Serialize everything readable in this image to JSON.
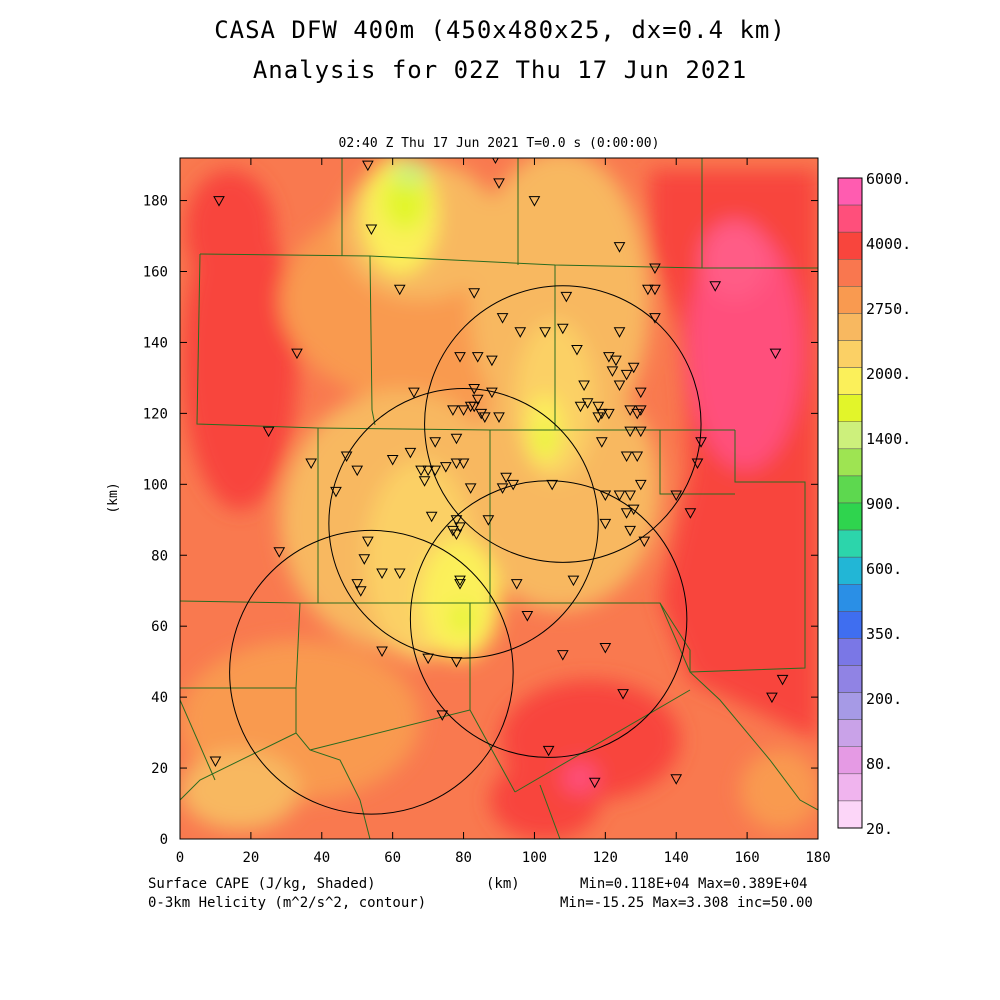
{
  "title": {
    "line1": "CASA DFW 400m (450x480x25, dx=0.4 km)",
    "line2": "Analysis for 02Z Thu 17 Jun 2021"
  },
  "frame_label": "02:40 Z Thu 17 Jun 2021    T=0.0 s (0:00:00)",
  "axes": {
    "x_label": "(km)",
    "y_label": "(km)",
    "x_ticks": [
      "0",
      "20",
      "40",
      "60",
      "80",
      "100",
      "120",
      "140",
      "160",
      "180"
    ],
    "y_ticks": [
      "0",
      "20",
      "40",
      "60",
      "80",
      "100",
      "120",
      "140",
      "160",
      "180"
    ],
    "x_range": [
      0,
      180
    ],
    "y_range": [
      0,
      192
    ]
  },
  "colorbar": {
    "labels": [
      "6000.",
      "4000.",
      "2750.",
      "2000.",
      "1400.",
      "900.",
      "600.",
      "350.",
      "200.",
      "80.",
      "20."
    ],
    "colors": [
      "#ff5cb0",
      "#ff4f7b",
      "#f8453d",
      "#f9774f",
      "#f99a50",
      "#f8b860",
      "#fbd065",
      "#fbf05a",
      "#e2f52a",
      "#cdf07c",
      "#9ee452",
      "#5dd84f",
      "#2fd44e",
      "#2cd5ab",
      "#22b6d6",
      "#2a8fe6",
      "#3f6ef0",
      "#7a77e6",
      "#9083e4",
      "#a69ae6",
      "#c9a2e8",
      "#e59ae4",
      "#f0b4ee",
      "#fcd6f8"
    ]
  },
  "footer": {
    "field1": "Surface CAPE (J/kg, Shaded)",
    "field2": "0-3km Helicity (m^2/s^2, contour)",
    "xunit": "(km)",
    "stats1": "Min=0.118E+04 Max=0.389E+04",
    "stats2": "Min=-15.25 Max=3.308 inc=50.00"
  },
  "radars": [
    {
      "x": 108,
      "y": 117,
      "r": 39
    },
    {
      "x": 80,
      "y": 89,
      "r": 38
    },
    {
      "x": 104,
      "y": 62,
      "r": 39
    },
    {
      "x": 54,
      "y": 47,
      "r": 40
    }
  ],
  "stations": [
    [
      11,
      180
    ],
    [
      33,
      137
    ],
    [
      25,
      115
    ],
    [
      37,
      106
    ],
    [
      54,
      172
    ],
    [
      62,
      155
    ],
    [
      53,
      190
    ],
    [
      89,
      192
    ],
    [
      90,
      185
    ],
    [
      100,
      180
    ],
    [
      83,
      154
    ],
    [
      91,
      147
    ],
    [
      96,
      143
    ],
    [
      79,
      136
    ],
    [
      84,
      136
    ],
    [
      88,
      135
    ],
    [
      83,
      127
    ],
    [
      88,
      126
    ],
    [
      84,
      124
    ],
    [
      83,
      122
    ],
    [
      80,
      121
    ],
    [
      82,
      122
    ],
    [
      77,
      121
    ],
    [
      85,
      120
    ],
    [
      90,
      119
    ],
    [
      86,
      119
    ],
    [
      66,
      126
    ],
    [
      78,
      113
    ],
    [
      72,
      112
    ],
    [
      65,
      109
    ],
    [
      80,
      106
    ],
    [
      78,
      106
    ],
    [
      75,
      105
    ],
    [
      72,
      104
    ],
    [
      70,
      104
    ],
    [
      68,
      104
    ],
    [
      69,
      101
    ],
    [
      60,
      107
    ],
    [
      47,
      108
    ],
    [
      50,
      104
    ],
    [
      44,
      98
    ],
    [
      28,
      81
    ],
    [
      53,
      84
    ],
    [
      52,
      79
    ],
    [
      57,
      75
    ],
    [
      62,
      75
    ],
    [
      50,
      72
    ],
    [
      51,
      70
    ],
    [
      71,
      91
    ],
    [
      78,
      90
    ],
    [
      77,
      87
    ],
    [
      79,
      88
    ],
    [
      78,
      86
    ],
    [
      87,
      90
    ],
    [
      82,
      99
    ],
    [
      91,
      99
    ],
    [
      92,
      102
    ],
    [
      94,
      100
    ],
    [
      105,
      100
    ],
    [
      103,
      143
    ],
    [
      109,
      153
    ],
    [
      108,
      144
    ],
    [
      112,
      138
    ],
    [
      114,
      128
    ],
    [
      115,
      123
    ],
    [
      113,
      122
    ],
    [
      118,
      122
    ],
    [
      119,
      120
    ],
    [
      118,
      119
    ],
    [
      121,
      120
    ],
    [
      124,
      128
    ],
    [
      121,
      136
    ],
    [
      122,
      132
    ],
    [
      123,
      135
    ],
    [
      126,
      131
    ],
    [
      128,
      133
    ],
    [
      127,
      121
    ],
    [
      129,
      120
    ],
    [
      130,
      121
    ],
    [
      130,
      126
    ],
    [
      127,
      115
    ],
    [
      130,
      115
    ],
    [
      126,
      108
    ],
    [
      129,
      108
    ],
    [
      132,
      155
    ],
    [
      134,
      155
    ],
    [
      134,
      147
    ],
    [
      134,
      161
    ],
    [
      124,
      167
    ],
    [
      124,
      143
    ],
    [
      119,
      112
    ],
    [
      120,
      97
    ],
    [
      124,
      97
    ],
    [
      127,
      97
    ],
    [
      128,
      93
    ],
    [
      126,
      92
    ],
    [
      130,
      100
    ],
    [
      127,
      87
    ],
    [
      131,
      84
    ],
    [
      120,
      89
    ],
    [
      140,
      97
    ],
    [
      144,
      92
    ],
    [
      146,
      106
    ],
    [
      147,
      112
    ],
    [
      151,
      156
    ],
    [
      168,
      137
    ],
    [
      120,
      54
    ],
    [
      125,
      41
    ],
    [
      140,
      17
    ],
    [
      117,
      16
    ],
    [
      104,
      25
    ],
    [
      111,
      73
    ],
    [
      108,
      52
    ],
    [
      98,
      63
    ],
    [
      95,
      72
    ],
    [
      79,
      73
    ],
    [
      79,
      72
    ],
    [
      78,
      50
    ],
    [
      70,
      51
    ],
    [
      57,
      53
    ],
    [
      74,
      35
    ],
    [
      10,
      22
    ],
    [
      167,
      40
    ],
    [
      170,
      45
    ]
  ]
}
